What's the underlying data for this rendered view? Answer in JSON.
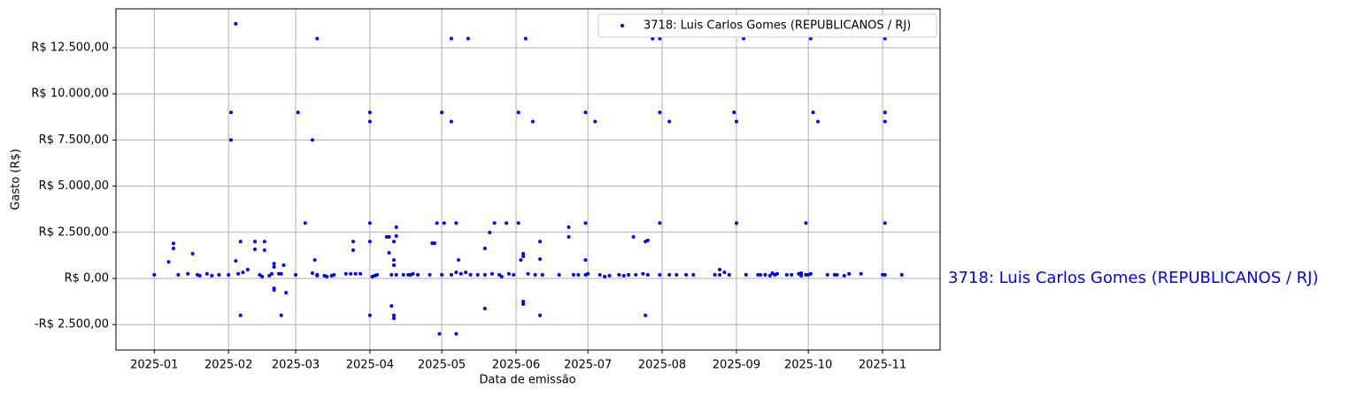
{
  "chart_data": {
    "type": "scatter",
    "xlabel": "Data de emissão",
    "ylabel": "Gasto (R$)",
    "annotation": "3718: Luis Carlos Gomes (REPUBLICANOS / RJ)",
    "xlim": [
      -16,
      328
    ],
    "ylim": [
      -3880,
      14610
    ],
    "grid": true,
    "legend": "upper right",
    "xticks": [
      {
        "value": 0,
        "label": "2025-01"
      },
      {
        "value": 31,
        "label": "2025-02"
      },
      {
        "value": 59,
        "label": "2025-03"
      },
      {
        "value": 90,
        "label": "2025-04"
      },
      {
        "value": 120,
        "label": "2025-05"
      },
      {
        "value": 151,
        "label": "2025-06"
      },
      {
        "value": 181,
        "label": "2025-07"
      },
      {
        "value": 212,
        "label": "2025-08"
      },
      {
        "value": 243,
        "label": "2025-09"
      },
      {
        "value": 273,
        "label": "2025-10"
      },
      {
        "value": 304,
        "label": "2025-11"
      }
    ],
    "yticks": [
      {
        "value": -2500,
        "label": "-R$ 2.500,00"
      },
      {
        "value": 0,
        "label": "R$ 0,00"
      },
      {
        "value": 2500,
        "label": "R$ 2.500,00"
      },
      {
        "value": 5000,
        "label": "R$ 5.000,00"
      },
      {
        "value": 7500,
        "label": "R$ 7.500,00"
      },
      {
        "value": 10000,
        "label": "R$ 10.000,00"
      },
      {
        "value": 12500,
        "label": "R$ 12.500,00"
      }
    ],
    "x": [
      0,
      6,
      8,
      8,
      10,
      14,
      16,
      18,
      19,
      22,
      24,
      27,
      31,
      32,
      32,
      34,
      34,
      35,
      36,
      36,
      37,
      39,
      42,
      42,
      44,
      45,
      46,
      46,
      48,
      49,
      50,
      50,
      50,
      50,
      52,
      53,
      53,
      54,
      55,
      59,
      60,
      63,
      66,
      67,
      66,
      68,
      68,
      68,
      71,
      72,
      74,
      75,
      80,
      82,
      83,
      83,
      84,
      86,
      90,
      90,
      90,
      90,
      90,
      91,
      92,
      93,
      97,
      98,
      98,
      99,
      99,
      100,
      100,
      100,
      100,
      100,
      101,
      101,
      101,
      104,
      106,
      107,
      108,
      110,
      115,
      116,
      117,
      118,
      119,
      120,
      120,
      121,
      124,
      124,
      124,
      126,
      126,
      127,
      126,
      128,
      130,
      131,
      132,
      135,
      138,
      138,
      138,
      140,
      141,
      142,
      144,
      145,
      147,
      148,
      150,
      152,
      152,
      153,
      154,
      154,
      154,
      154,
      155,
      156,
      158,
      159,
      161,
      161,
      161,
      162,
      169,
      173,
      173,
      175,
      177,
      180,
      180,
      180,
      180,
      181,
      184,
      186,
      188,
      190,
      194,
      196,
      198,
      200,
      201,
      204,
      205,
      206,
      205,
      206,
      208,
      211,
      211,
      211,
      211,
      215,
      215,
      218,
      222,
      225,
      234,
      236,
      236,
      238,
      240,
      242,
      243,
      243,
      246,
      247,
      252,
      253,
      255,
      257,
      258,
      259,
      260,
      264,
      266,
      269,
      270,
      270,
      272,
      272,
      273,
      274,
      274,
      275,
      277,
      281,
      284,
      285,
      288,
      290,
      295,
      304,
      305,
      305,
      305,
      305,
      305,
      312
    ],
    "series": [
      {
        "name": "3718: Luis Carlos Gomes (REPUBLICANOS / RJ)",
        "color": "#0000ff",
        "values": [
          200,
          900,
          1900,
          1630,
          200,
          250,
          1340,
          200,
          150,
          250,
          150,
          200,
          200,
          9000,
          7500,
          13800,
          950,
          250,
          2000,
          -2000,
          330,
          480,
          2000,
          1580,
          200,
          100,
          2000,
          1530,
          150,
          250,
          620,
          800,
          -620,
          -530,
          250,
          250,
          -2000,
          720,
          -770,
          200,
          9000,
          3000,
          7500,
          1000,
          290,
          150,
          200,
          13000,
          150,
          100,
          150,
          200,
          250,
          250,
          2000,
          1530,
          250,
          250,
          3000,
          9000,
          8500,
          2000,
          -2000,
          100,
          150,
          200,
          2250,
          2250,
          1390,
          -1490,
          200,
          1000,
          720,
          2000,
          -2000,
          -2160,
          2300,
          2780,
          200,
          200,
          200,
          200,
          250,
          200,
          200,
          1910,
          1910,
          3000,
          -3000,
          200,
          9000,
          3000,
          13000,
          8500,
          200,
          3000,
          -3000,
          1000,
          330,
          250,
          330,
          13000,
          200,
          200,
          200,
          1630,
          -1630,
          2490,
          250,
          3000,
          200,
          100,
          3000,
          250,
          200,
          9000,
          3000,
          1000,
          1340,
          1200,
          -1250,
          -1390,
          13000,
          250,
          8500,
          200,
          1050,
          2000,
          -2000,
          200,
          200,
          2780,
          2250,
          200,
          200,
          9000,
          3000,
          1000,
          200,
          250,
          8500,
          200,
          100,
          150,
          200,
          150,
          200,
          2250,
          200,
          250,
          2000,
          2060,
          -2000,
          200,
          13000,
          13000,
          9000,
          3000,
          200,
          8500,
          200,
          200,
          200,
          200,
          200,
          480,
          200,
          330,
          200,
          9000,
          3000,
          8500,
          13000,
          200,
          200,
          200,
          200,
          150,
          290,
          200,
          250,
          200,
          200,
          250,
          150,
          290,
          200,
          3000,
          200,
          13000,
          250,
          9000,
          8500,
          200,
          200,
          200,
          150,
          250,
          250,
          200,
          13000,
          9000,
          8500,
          3000,
          200,
          200
        ]
      }
    ]
  }
}
